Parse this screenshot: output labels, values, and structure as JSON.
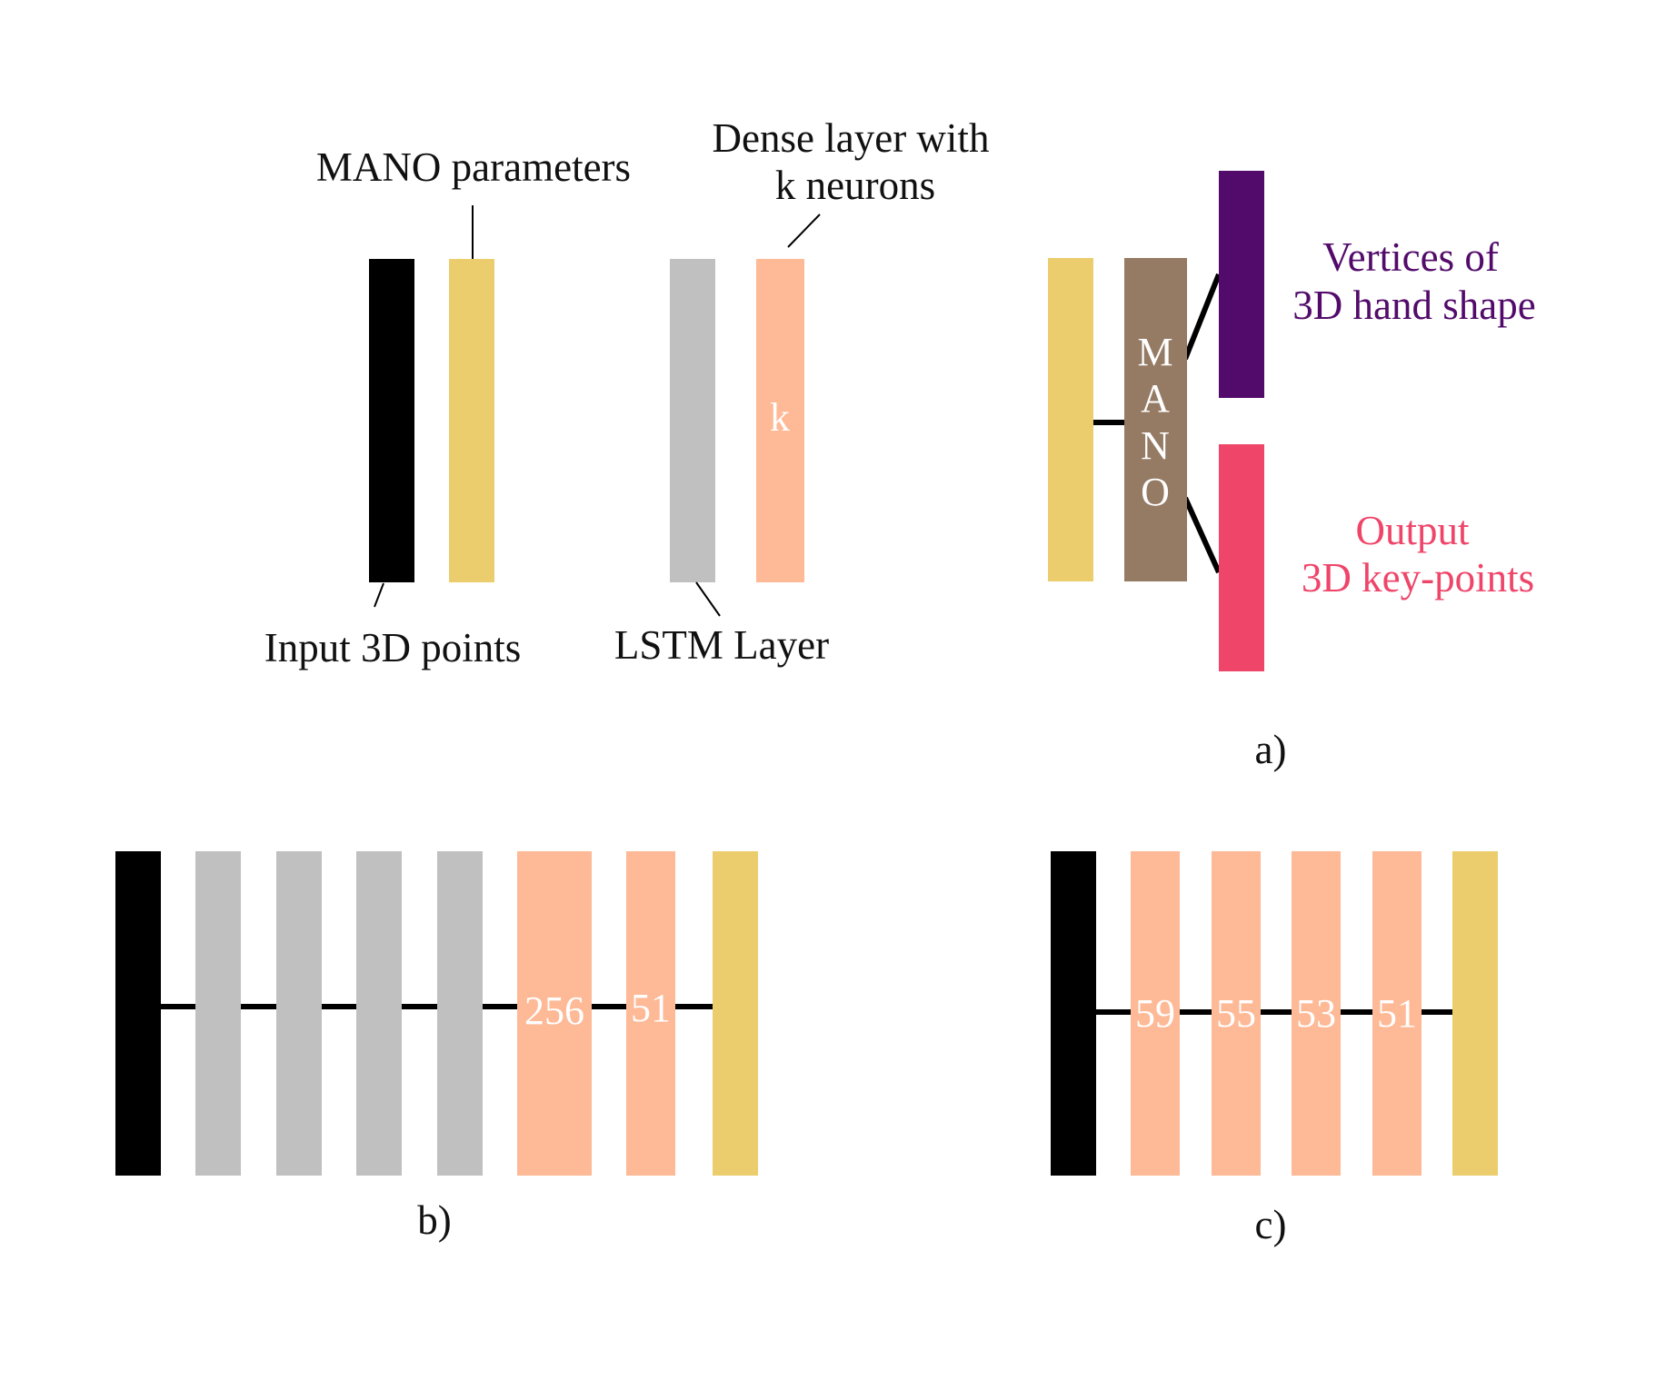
{
  "colors": {
    "input": "#000000",
    "mano_params": "#ECCD6E",
    "lstm": "#C0C0C0",
    "dense": "#FEB996",
    "mano_block": "#957A64",
    "vertices": "#520B6A",
    "keypoints": "#EE4569",
    "line": "#000000"
  },
  "legend": {
    "mano_parameters": "MANO parameters",
    "dense_line1": "Dense layer with",
    "dense_line2": "k neurons",
    "dense_bar_text": "k",
    "input_points": "Input 3D points",
    "lstm_layer": "LSTM Layer"
  },
  "panel_a": {
    "mano_letters": [
      "M",
      "A",
      "N",
      "O"
    ],
    "vertices_line1": "Vertices of",
    "vertices_line2": "3D hand shape",
    "output_line1": "Output",
    "output_line2": "3D key-points",
    "caption": "a)"
  },
  "panel_b": {
    "dense_labels": [
      "256",
      "51"
    ],
    "caption": "b)"
  },
  "panel_c": {
    "dense_labels": [
      "59",
      "55",
      "53",
      "51"
    ],
    "caption": "c)"
  }
}
